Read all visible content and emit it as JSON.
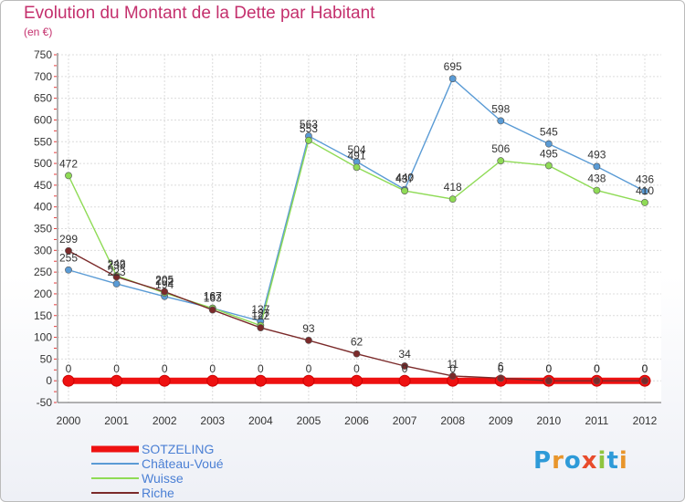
{
  "title": "Evolution du Montant de la Dette par Habitant",
  "subtitle": "(en €)",
  "logo": {
    "text": "Proxiti",
    "colors": [
      "#2e9ad8",
      "#e8952c",
      "#2e9ad8",
      "#e84b2c",
      "#8fc53f",
      "#2e9ad8",
      "#e8952c"
    ]
  },
  "chart_data": {
    "type": "line",
    "x": [
      "2000",
      "2001",
      "2002",
      "2003",
      "2004",
      "2005",
      "2006",
      "2007",
      "2008",
      "2009",
      "2010",
      "2011",
      "2012"
    ],
    "ylim": [
      -50,
      750
    ],
    "yticks": [
      -50,
      0,
      50,
      100,
      150,
      200,
      250,
      300,
      350,
      400,
      450,
      500,
      550,
      600,
      650,
      700,
      750
    ],
    "grid": true,
    "legend_position": "bottom-left",
    "series": [
      {
        "name": "SOTZELING",
        "color": "#ee1111",
        "values": [
          0,
          0,
          0,
          0,
          0,
          0,
          0,
          0,
          0,
          0,
          0,
          0,
          0
        ]
      },
      {
        "name": "Château-Voué",
        "color": "#5a9bd5",
        "values": [
          255,
          223,
          194,
          167,
          137,
          563,
          504,
          440,
          695,
          598,
          545,
          493,
          436
        ]
      },
      {
        "name": "Wuisse",
        "color": "#8fdb56",
        "values": [
          472,
          242,
          202,
          167,
          127,
          553,
          491,
          437,
          418,
          506,
          495,
          438,
          410
        ]
      },
      {
        "name": "Riche",
        "color": "#7b2a2a",
        "values": [
          299,
          239,
          205,
          163,
          122,
          93,
          62,
          34,
          11,
          6,
          0,
          0,
          0
        ]
      }
    ]
  }
}
